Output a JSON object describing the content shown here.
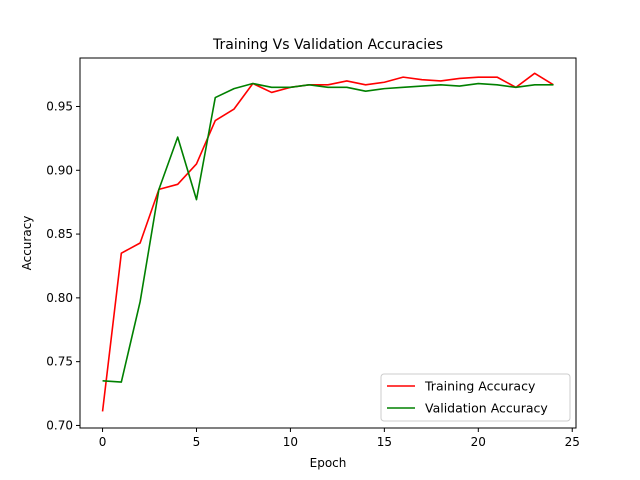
{
  "chart_data": {
    "type": "line",
    "title": "Training Vs Validation Accuracies",
    "xlabel": "Epoch",
    "ylabel": "Accuracy",
    "xlim": [
      -1.2,
      25.2
    ],
    "ylim": [
      0.698,
      0.988
    ],
    "xticks": [
      0,
      5,
      10,
      15,
      20,
      25
    ],
    "xtick_labels": [
      "0",
      "5",
      "10",
      "15",
      "20",
      "25"
    ],
    "yticks": [
      0.7,
      0.75,
      0.8,
      0.85,
      0.9,
      0.95
    ],
    "ytick_labels": [
      "0.70",
      "0.75",
      "0.80",
      "0.85",
      "0.90",
      "0.95"
    ],
    "grid": false,
    "legend_position": "lower right",
    "x": [
      0,
      1,
      2,
      3,
      4,
      5,
      6,
      7,
      8,
      9,
      10,
      11,
      12,
      13,
      14,
      15,
      16,
      17,
      18,
      19,
      20,
      21,
      22,
      23,
      24
    ],
    "series": [
      {
        "name": "Training Accuracy",
        "color": "#ff0000",
        "values": [
          0.711,
          0.835,
          0.843,
          0.885,
          0.889,
          0.905,
          0.939,
          0.948,
          0.968,
          0.961,
          0.965,
          0.967,
          0.967,
          0.97,
          0.967,
          0.969,
          0.973,
          0.971,
          0.97,
          0.972,
          0.973,
          0.973,
          0.965,
          0.976,
          0.967
        ]
      },
      {
        "name": "Validation Accuracy",
        "color": "#008000",
        "values": [
          0.735,
          0.734,
          0.797,
          0.885,
          0.926,
          0.877,
          0.957,
          0.964,
          0.968,
          0.965,
          0.965,
          0.967,
          0.965,
          0.965,
          0.962,
          0.964,
          0.965,
          0.966,
          0.967,
          0.966,
          0.968,
          0.967,
          0.965,
          0.967,
          0.967
        ]
      }
    ]
  }
}
